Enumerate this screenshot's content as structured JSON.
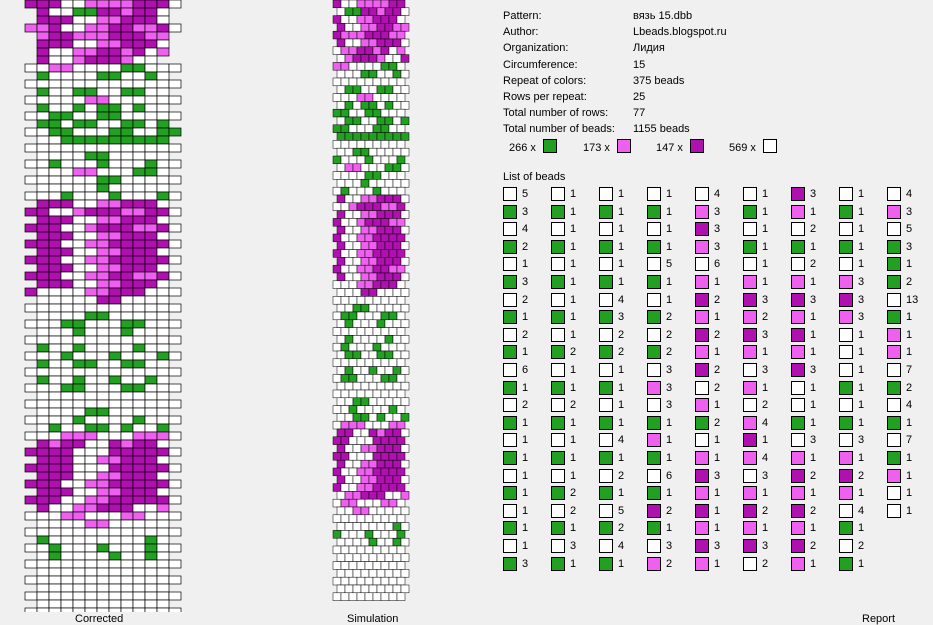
{
  "colors": {
    "c1": "#ffffff",
    "c2": "#22a022",
    "c3": "#f060f0",
    "c4": "#b010b0"
  },
  "corrected_grid_rows": [
    "4441133334441",
    "41122443441",
    "44411334441",
    "3341133443341",
    "34433344433",
    "44411334441",
    "41133443413",
    "4113444311",
    "1133111122111",
    "21111221121",
    "1111111111111",
    "21122112211",
    "1111133111111",
    "21121221211",
    "1122112211111",
    "22122112212",
    "1122111221122",
    "11222222222",
    "1111111111111",
    "11112211111",
    "1121112111211",
    "11133111221",
    "1111112211111",
    "11111211111",
    "1112111211121",
    "44411334441",
    "4411344433441",
    "44411334441",
    "4441134443341",
    "44411334441",
    "4441133444441",
    "44411334441",
    "4441133444441",
    "44411334441",
    "4441133443341",
    "44411334441",
    "4111133444111",
    "11111441111",
    "1111111111111",
    "11112211111",
    "1112211122111",
    "11121112111",
    "1111111111111",
    "21121111211",
    "1112111211121",
    "21122112211",
    "1111111111111",
    "21121121121",
    "1112211122111",
    "11111111111",
    "1111111111111",
    "11112211111",
    "1111211112111",
    "12112212112",
    "1113331113331",
    "43441143441",
    "4444111444441",
    "44411334441",
    "4444111444441",
    "44411334441",
    "4441133444441",
    "44411334441",
    "4441133444441",
    "41133444113",
    "1113311133111",
    "11113311111",
    "1111111111111",
    "21111111121",
    "1121112111211",
    "12111121121",
    "1111111111111",
    "11111111111",
    "1111111111111",
    "11111111111",
    "1111111111111",
    "11111111111",
    "1111111111111"
  ],
  "info": {
    "rows": [
      {
        "label": "Pattern:",
        "value": "вязь 15.dbb"
      },
      {
        "label": "Author:",
        "value": "Lbeads.blogspot.ru"
      },
      {
        "label": "Organization:",
        "value": "Лидия"
      },
      {
        "label": "Circumference:",
        "value": "15"
      },
      {
        "label": "Repeat of colors:",
        "value": "375 beads"
      },
      {
        "label": "Rows per repeat:",
        "value": "25"
      },
      {
        "label": "Total number of rows:",
        "value": "77"
      },
      {
        "label": "Total number of beads:",
        "value": "1155 beads"
      }
    ]
  },
  "summary": [
    {
      "count": "266 x",
      "color": "c2"
    },
    {
      "count": "173 x",
      "color": "c3"
    },
    {
      "count": "147 x",
      "color": "c4"
    },
    {
      "count": "569 x",
      "color": "c1"
    }
  ],
  "list_title": "List of beads",
  "bead_columns": [
    [
      [
        "c1",
        "5"
      ],
      [
        "c2",
        "3"
      ],
      [
        "c1",
        "4"
      ],
      [
        "c2",
        "2"
      ],
      [
        "c1",
        "1"
      ],
      [
        "c2",
        "3"
      ],
      [
        "c1",
        "2"
      ],
      [
        "c2",
        "1"
      ],
      [
        "c1",
        "2"
      ],
      [
        "c2",
        "1"
      ],
      [
        "c1",
        "6"
      ],
      [
        "c2",
        "1"
      ],
      [
        "c1",
        "2"
      ],
      [
        "c2",
        "1"
      ],
      [
        "c1",
        "1"
      ],
      [
        "c2",
        "1"
      ],
      [
        "c1",
        "1"
      ],
      [
        "c2",
        "1"
      ],
      [
        "c1",
        "1"
      ],
      [
        "c2",
        "1"
      ],
      [
        "c1",
        "1"
      ],
      [
        "c2",
        "3"
      ]
    ],
    [
      [
        "c1",
        "1"
      ],
      [
        "c2",
        "1"
      ],
      [
        "c1",
        "1"
      ],
      [
        "c2",
        "1"
      ],
      [
        "c1",
        "1"
      ],
      [
        "c2",
        "1"
      ],
      [
        "c1",
        "1"
      ],
      [
        "c2",
        "1"
      ],
      [
        "c1",
        "1"
      ],
      [
        "c2",
        "2"
      ],
      [
        "c1",
        "1"
      ],
      [
        "c2",
        "1"
      ],
      [
        "c1",
        "2"
      ],
      [
        "c2",
        "1"
      ],
      [
        "c1",
        "1"
      ],
      [
        "c2",
        "1"
      ],
      [
        "c1",
        "1"
      ],
      [
        "c2",
        "2"
      ],
      [
        "c1",
        "2"
      ],
      [
        "c2",
        "1"
      ],
      [
        "c1",
        "3"
      ],
      [
        "c2",
        "1"
      ]
    ],
    [
      [
        "c1",
        "1"
      ],
      [
        "c2",
        "1"
      ],
      [
        "c1",
        "1"
      ],
      [
        "c2",
        "1"
      ],
      [
        "c1",
        "1"
      ],
      [
        "c2",
        "1"
      ],
      [
        "c1",
        "4"
      ],
      [
        "c2",
        "3"
      ],
      [
        "c1",
        "2"
      ],
      [
        "c2",
        "2"
      ],
      [
        "c1",
        "1"
      ],
      [
        "c2",
        "1"
      ],
      [
        "c1",
        "1"
      ],
      [
        "c2",
        "1"
      ],
      [
        "c1",
        "4"
      ],
      [
        "c2",
        "1"
      ],
      [
        "c1",
        "2"
      ],
      [
        "c2",
        "1"
      ],
      [
        "c1",
        "5"
      ],
      [
        "c2",
        "2"
      ],
      [
        "c1",
        "4"
      ],
      [
        "c2",
        "1"
      ]
    ],
    [
      [
        "c1",
        "1"
      ],
      [
        "c2",
        "1"
      ],
      [
        "c1",
        "1"
      ],
      [
        "c2",
        "1"
      ],
      [
        "c1",
        "5"
      ],
      [
        "c2",
        "1"
      ],
      [
        "c1",
        "1"
      ],
      [
        "c2",
        "2"
      ],
      [
        "c1",
        "2"
      ],
      [
        "c2",
        "2"
      ],
      [
        "c1",
        "3"
      ],
      [
        "c3",
        "3"
      ],
      [
        "c1",
        "3"
      ],
      [
        "c2",
        "1"
      ],
      [
        "c3",
        "1"
      ],
      [
        "c2",
        "1"
      ],
      [
        "c1",
        "6"
      ],
      [
        "c2",
        "1"
      ],
      [
        "c4",
        "2"
      ],
      [
        "c2",
        "1"
      ],
      [
        "c1",
        "3"
      ],
      [
        "c3",
        "2"
      ]
    ],
    [
      [
        "c1",
        "4"
      ],
      [
        "c3",
        "3"
      ],
      [
        "c4",
        "3"
      ],
      [
        "c3",
        "3"
      ],
      [
        "c1",
        "6"
      ],
      [
        "c3",
        "1"
      ],
      [
        "c4",
        "2"
      ],
      [
        "c3",
        "1"
      ],
      [
        "c4",
        "2"
      ],
      [
        "c3",
        "1"
      ],
      [
        "c4",
        "2"
      ],
      [
        "c1",
        "2"
      ],
      [
        "c3",
        "1"
      ],
      [
        "c2",
        "2"
      ],
      [
        "c1",
        "1"
      ],
      [
        "c3",
        "1"
      ],
      [
        "c4",
        "3"
      ],
      [
        "c3",
        "1"
      ],
      [
        "c4",
        "1"
      ],
      [
        "c3",
        "1"
      ],
      [
        "c4",
        "3"
      ],
      [
        "c3",
        "1"
      ]
    ],
    [
      [
        "c1",
        "1"
      ],
      [
        "c2",
        "1"
      ],
      [
        "c1",
        "1"
      ],
      [
        "c2",
        "1"
      ],
      [
        "c1",
        "1"
      ],
      [
        "c3",
        "1"
      ],
      [
        "c4",
        "3"
      ],
      [
        "c3",
        "2"
      ],
      [
        "c4",
        "3"
      ],
      [
        "c3",
        "1"
      ],
      [
        "c1",
        "3"
      ],
      [
        "c3",
        "1"
      ],
      [
        "c1",
        "2"
      ],
      [
        "c3",
        "4"
      ],
      [
        "c4",
        "1"
      ],
      [
        "c3",
        "4"
      ],
      [
        "c1",
        "3"
      ],
      [
        "c3",
        "1"
      ],
      [
        "c4",
        "2"
      ],
      [
        "c3",
        "1"
      ],
      [
        "c4",
        "3"
      ],
      [
        "c1",
        "2"
      ]
    ],
    [
      [
        "c4",
        "3"
      ],
      [
        "c3",
        "1"
      ],
      [
        "c1",
        "2"
      ],
      [
        "c2",
        "1"
      ],
      [
        "c1",
        "2"
      ],
      [
        "c3",
        "1"
      ],
      [
        "c4",
        "3"
      ],
      [
        "c3",
        "1"
      ],
      [
        "c4",
        "1"
      ],
      [
        "c3",
        "1"
      ],
      [
        "c4",
        "3"
      ],
      [
        "c1",
        "1"
      ],
      [
        "c1",
        "1"
      ],
      [
        "c2",
        "1"
      ],
      [
        "c1",
        "3"
      ],
      [
        "c3",
        "1"
      ],
      [
        "c4",
        "2"
      ],
      [
        "c3",
        "1"
      ],
      [
        "c4",
        "2"
      ],
      [
        "c3",
        "1"
      ],
      [
        "c4",
        "2"
      ],
      [
        "c3",
        "1"
      ]
    ],
    [
      [
        "c1",
        "1"
      ],
      [
        "c2",
        "1"
      ],
      [
        "c1",
        "1"
      ],
      [
        "c2",
        "1"
      ],
      [
        "c1",
        "1"
      ],
      [
        "c3",
        "3"
      ],
      [
        "c4",
        "3"
      ],
      [
        "c3",
        "3"
      ],
      [
        "c1",
        "1"
      ],
      [
        "c1",
        "1"
      ],
      [
        "c1",
        "1"
      ],
      [
        "c2",
        "1"
      ],
      [
        "c1",
        "1"
      ],
      [
        "c2",
        "1"
      ],
      [
        "c1",
        "3"
      ],
      [
        "c3",
        "1"
      ],
      [
        "c4",
        "2"
      ],
      [
        "c3",
        "1"
      ],
      [
        "c1",
        "4"
      ],
      [
        "c2",
        "1"
      ],
      [
        "c1",
        "2"
      ],
      [
        "c2",
        "1"
      ]
    ],
    [
      [
        "c1",
        "4"
      ],
      [
        "c3",
        "3"
      ],
      [
        "c1",
        "5"
      ],
      [
        "c2",
        "3"
      ],
      [
        "c2",
        "1"
      ],
      [
        "c2",
        "2"
      ],
      [
        "c1",
        "13"
      ],
      [
        "c2",
        "1"
      ],
      [
        "c3",
        "1"
      ],
      [
        "c3",
        "1"
      ],
      [
        "c1",
        "7"
      ],
      [
        "c2",
        "2"
      ],
      [
        "c1",
        "4"
      ],
      [
        "c2",
        "1"
      ],
      [
        "c1",
        "7"
      ],
      [
        "c2",
        "1"
      ],
      [
        "c3",
        "1"
      ],
      [
        "c1",
        "1"
      ],
      [
        "c1",
        "1"
      ]
    ]
  ],
  "captions": {
    "corrected": "Corrected",
    "simulation": "Simulation",
    "report": "Report"
  }
}
